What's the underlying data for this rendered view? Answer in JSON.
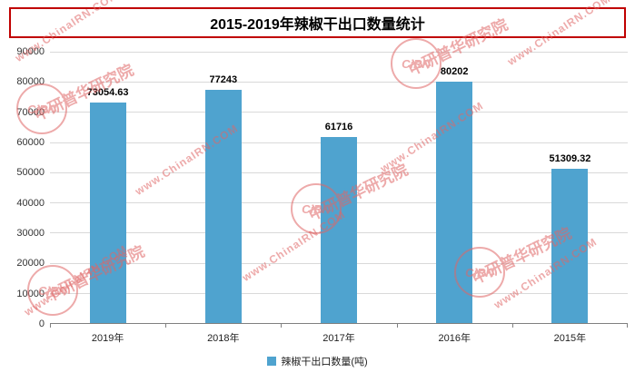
{
  "chart_data": {
    "type": "bar",
    "title": "2015-2019年辣椒干出口数量统计",
    "categories": [
      "2019年",
      "2018年",
      "2017年",
      "2016年",
      "2015年"
    ],
    "values": [
      73054.63,
      77243,
      61716,
      80202,
      51309.32
    ],
    "value_labels": [
      "73054.63",
      "77243",
      "61716",
      "80202",
      "51309.32"
    ],
    "ylim": [
      0,
      90000
    ],
    "ytick_step": 10000,
    "grid": true,
    "legend_position": "bottom",
    "legend_label": "辣椒干出口数量(吨)"
  },
  "colors": {
    "bar": "#4FA3CF",
    "title_border": "#C00000",
    "watermark": "#E06666",
    "grid": "#D9D9D9",
    "axis": "#808080"
  },
  "watermark": {
    "url_text": "www.ChinaIRN.COM",
    "logo_text": "CiRN",
    "org_text": "中研普华研究院"
  }
}
